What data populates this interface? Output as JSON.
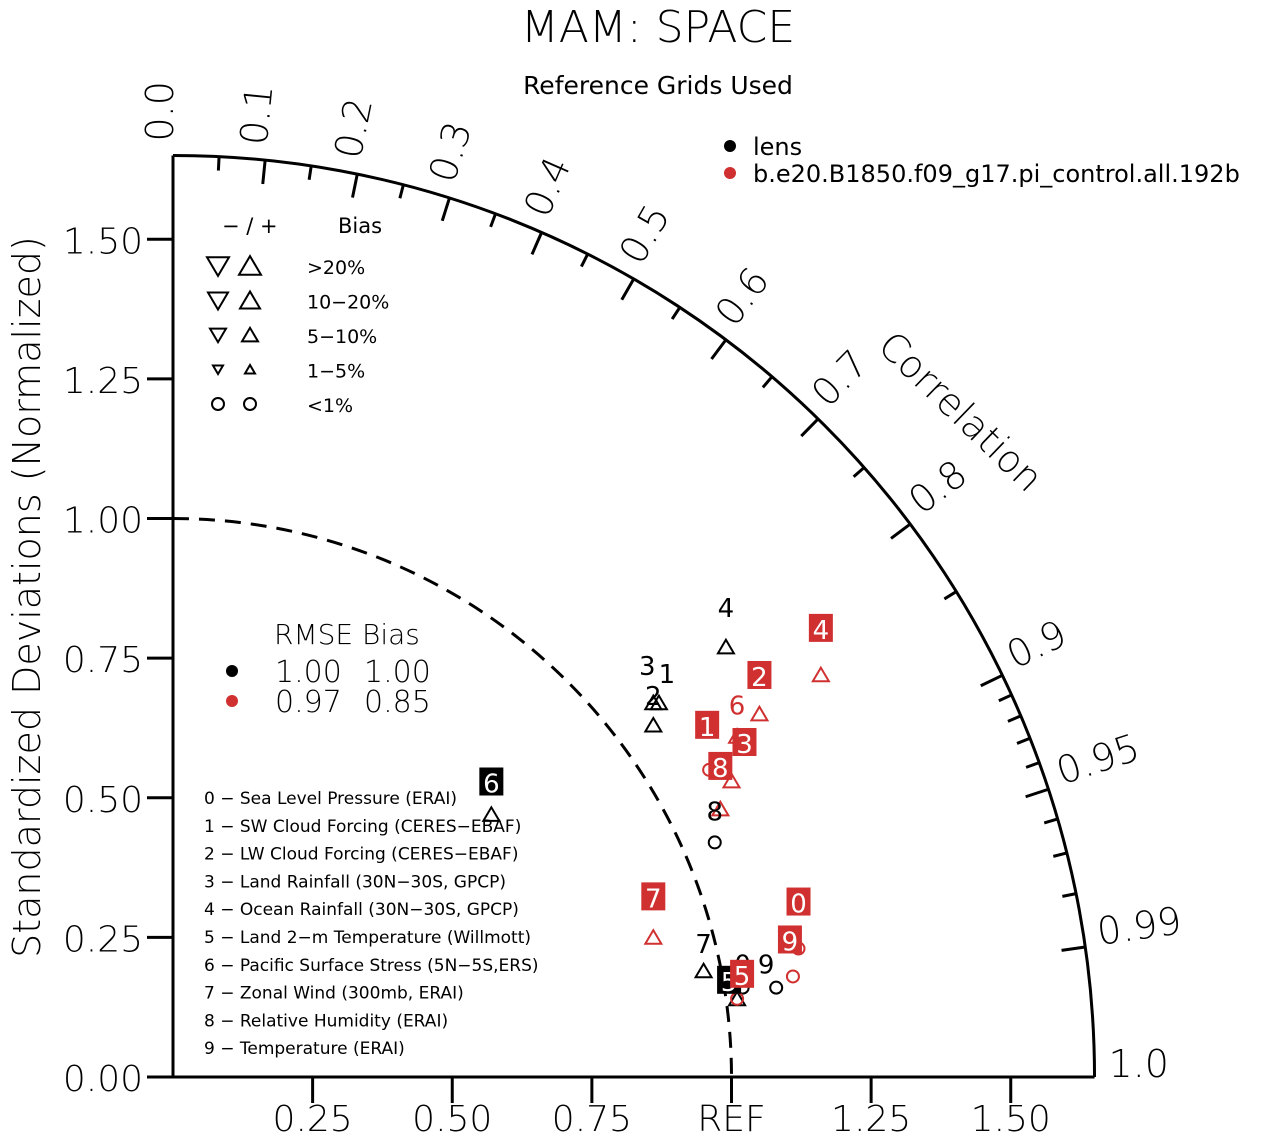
{
  "chart_data": {
    "type": "scatter",
    "subtype": "taylor-diagram",
    "title": "MAM: SPACE",
    "subtitle": "Reference Grids Used",
    "ylabel": "Standardized Deviations (Normalized)",
    "correlation_label": "Correlation",
    "xlim": [
      0,
      1.65
    ],
    "ylim": [
      0,
      1.65
    ],
    "reference_arc_radius": 1.0,
    "y_ticks": [
      "0.00",
      "0.25",
      "0.50",
      "0.75",
      "1.00",
      "1.25",
      "1.50"
    ],
    "x_ticks": [
      "0.25",
      "0.50",
      "0.75",
      "REF",
      "1.25",
      "1.50"
    ],
    "correlation_ticks": [
      {
        "r": 0.0,
        "label": "0.0"
      },
      {
        "r": 0.1,
        "label": "0.1"
      },
      {
        "r": 0.2,
        "label": "0.2"
      },
      {
        "r": 0.3,
        "label": "0.3"
      },
      {
        "r": 0.4,
        "label": "0.4"
      },
      {
        "r": 0.5,
        "label": "0.5"
      },
      {
        "r": 0.6,
        "label": "0.6"
      },
      {
        "r": 0.7,
        "label": "0.7"
      },
      {
        "r": 0.8,
        "label": "0.8"
      },
      {
        "r": 0.9,
        "label": "0.9"
      },
      {
        "r": 0.95,
        "label": "0.95"
      },
      {
        "r": 0.99,
        "label": "0.99"
      },
      {
        "r": 1.0,
        "label": "1.0"
      }
    ],
    "series": [
      {
        "name": "lens",
        "color": "#000000",
        "rmse": "1.00",
        "bias": "1.00",
        "points": [
          {
            "id": "0",
            "x": 1.02,
            "y": 0.16
          },
          {
            "id": "1",
            "x": 0.87,
            "y": 0.67
          },
          {
            "id": "2",
            "x": 0.86,
            "y": 0.63
          },
          {
            "id": "3",
            "x": 0.86,
            "y": 0.67
          },
          {
            "id": "4",
            "x": 0.99,
            "y": 0.77
          },
          {
            "id": "5",
            "x": 1.01,
            "y": 0.14
          },
          {
            "id": "6",
            "x": 0.57,
            "y": 0.47
          },
          {
            "id": "7",
            "x": 0.95,
            "y": 0.19
          },
          {
            "id": "8",
            "x": 0.97,
            "y": 0.42
          },
          {
            "id": "9",
            "x": 1.08,
            "y": 0.16
          }
        ]
      },
      {
        "name": "b.e20.B1850.f09_g17.pi_control.all.192b",
        "color": "#d03030",
        "rmse": "0.97",
        "bias": "0.85",
        "points": [
          {
            "id": "0",
            "x": 1.12,
            "y": 0.23
          },
          {
            "id": "1",
            "x": 0.96,
            "y": 0.55
          },
          {
            "id": "2",
            "x": 1.05,
            "y": 0.65
          },
          {
            "id": "3",
            "x": 1.0,
            "y": 0.53
          },
          {
            "id": "4",
            "x": 1.16,
            "y": 0.72
          },
          {
            "id": "5",
            "x": 1.01,
            "y": 0.14
          },
          {
            "id": "6",
            "x": 1.01,
            "y": 0.61
          },
          {
            "id": "7",
            "x": 0.86,
            "y": 0.25
          },
          {
            "id": "8",
            "x": 0.98,
            "y": 0.48
          },
          {
            "id": "9",
            "x": 1.11,
            "y": 0.18
          }
        ]
      }
    ],
    "point_labels": [
      {
        "series": 0,
        "id": "0",
        "text": "0",
        "boxed": false
      },
      {
        "series": 0,
        "id": "1",
        "text": "1",
        "boxed": false
      },
      {
        "series": 0,
        "id": "2",
        "text": "2",
        "boxed": false
      },
      {
        "series": 0,
        "id": "3",
        "text": "3",
        "boxed": false
      },
      {
        "series": 0,
        "id": "4",
        "text": "4",
        "boxed": false
      },
      {
        "series": 0,
        "id": "5",
        "text": "5",
        "boxed": true
      },
      {
        "series": 0,
        "id": "6",
        "text": "6",
        "boxed": true
      },
      {
        "series": 0,
        "id": "7",
        "text": "7",
        "boxed": false
      },
      {
        "series": 0,
        "id": "8",
        "text": "8",
        "boxed": false
      },
      {
        "series": 0,
        "id": "9",
        "text": "9",
        "boxed": false
      },
      {
        "series": 1,
        "id": "0",
        "text": "0",
        "boxed": true
      },
      {
        "series": 1,
        "id": "1",
        "text": "1",
        "boxed": true
      },
      {
        "series": 1,
        "id": "2",
        "text": "2",
        "boxed": true
      },
      {
        "series": 1,
        "id": "3",
        "text": "3",
        "boxed": true
      },
      {
        "series": 1,
        "id": "4",
        "text": "4",
        "boxed": true
      },
      {
        "series": 1,
        "id": "5",
        "text": "5",
        "boxed": true
      },
      {
        "series": 1,
        "id": "6",
        "text": "6",
        "boxed": false
      },
      {
        "series": 1,
        "id": "7",
        "text": "7",
        "boxed": true
      },
      {
        "series": 1,
        "id": "8",
        "text": "8",
        "boxed": true
      },
      {
        "series": 1,
        "id": "9",
        "text": "9",
        "boxed": true
      }
    ],
    "marker_shapes": {
      "lens": [
        "circle",
        "triangle",
        "triangle",
        "triangle",
        "triangle",
        "triangle",
        "triangle",
        "triangle",
        "circle",
        "circle"
      ],
      "b.e20.B1850.f09_g17.pi_control.all.192b": [
        "circle",
        "circle",
        "triangle",
        "triangle",
        "triangle",
        "circle",
        "triangle",
        "triangle",
        "triangle",
        "circle"
      ]
    },
    "bias_legend": {
      "header": [
        "− / +",
        "Bias"
      ],
      "rows": [
        ">20%",
        "10−20%",
        "5−10%",
        "1−5%",
        "<1%"
      ]
    },
    "stats_legend": {
      "header": "RMSE Bias"
    },
    "variables": [
      "0 − Sea Level Pressure (ERAI)",
      "1 − SW Cloud Forcing (CERES−EBAF)",
      "2 − LW Cloud Forcing (CERES−EBAF)",
      "3 − Land Rainfall (30N−30S, GPCP)",
      "4 − Ocean Rainfall (30N−30S, GPCP)",
      "5 − Land 2−m Temperature (Willmott)",
      "6 − Pacific Surface Stress (5N−5S,ERS)",
      "7 − Zonal Wind (300mb, ERAI)",
      "8 − Relative Humidity (ERAI)",
      "9 − Temperature (ERAI)"
    ]
  }
}
